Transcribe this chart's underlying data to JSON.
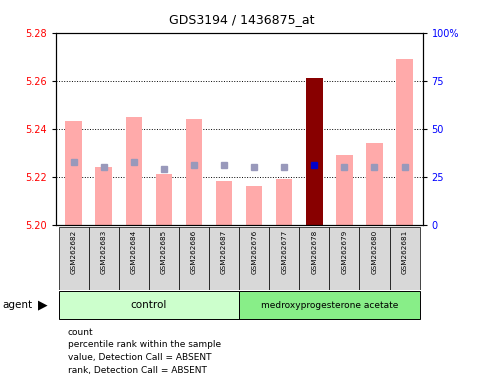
{
  "title": "GDS3194 / 1436875_at",
  "samples": [
    "GSM262682",
    "GSM262683",
    "GSM262684",
    "GSM262685",
    "GSM262686",
    "GSM262687",
    "GSM262676",
    "GSM262677",
    "GSM262678",
    "GSM262679",
    "GSM262680",
    "GSM262681"
  ],
  "bar_values": [
    5.243,
    5.224,
    5.245,
    5.221,
    5.244,
    5.218,
    5.216,
    5.219,
    5.261,
    5.229,
    5.234,
    5.269
  ],
  "rank_values": [
    5.226,
    5.224,
    5.226,
    5.223,
    5.225,
    5.225,
    5.224,
    5.224,
    5.225,
    5.224,
    5.224,
    5.224
  ],
  "bar_colors": [
    "#ffaaaa",
    "#ffaaaa",
    "#ffaaaa",
    "#ffaaaa",
    "#ffaaaa",
    "#ffaaaa",
    "#ffaaaa",
    "#ffaaaa",
    "#880000",
    "#ffaaaa",
    "#ffaaaa",
    "#ffaaaa"
  ],
  "rank_colors": [
    "#9999bb",
    "#9999bb",
    "#9999bb",
    "#9999bb",
    "#9999bb",
    "#9999bb",
    "#9999bb",
    "#9999bb",
    "#0000cc",
    "#9999bb",
    "#9999bb",
    "#9999bb"
  ],
  "ymin": 5.2,
  "ymax": 5.28,
  "yticks": [
    5.2,
    5.22,
    5.24,
    5.26,
    5.28
  ],
  "right_yticks": [
    0,
    25,
    50,
    75,
    100
  ],
  "control_color": "#ccffcc",
  "treatment_color": "#88ee88",
  "bar_width": 0.55,
  "rank_marker_size": 4,
  "legend_items": [
    {
      "color": "#cc0000",
      "label": "count"
    },
    {
      "color": "#0000cc",
      "label": "percentile rank within the sample"
    },
    {
      "color": "#ffbbbb",
      "label": "value, Detection Call = ABSENT"
    },
    {
      "color": "#aaaacc",
      "label": "rank, Detection Call = ABSENT"
    }
  ]
}
